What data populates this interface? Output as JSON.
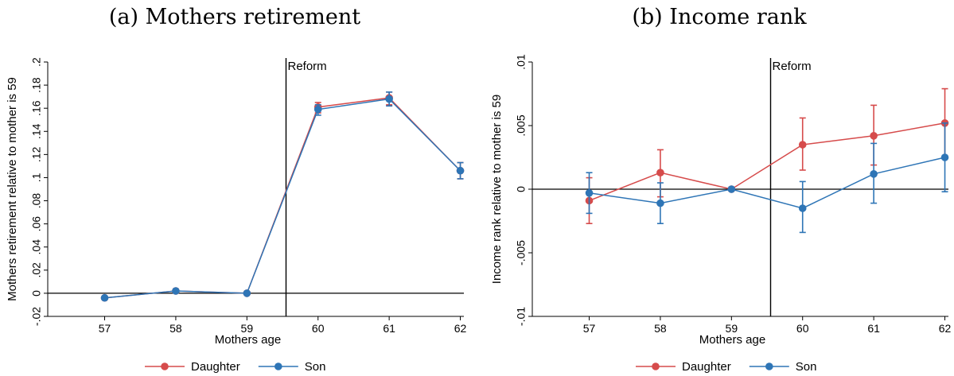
{
  "colors": {
    "daughter": "#d64b4b",
    "son": "#2e75b6"
  },
  "chart_data": [
    {
      "type": "line",
      "title": "(a) Mothers retirement",
      "xlabel": "Mothers age",
      "ylabel": "Mothers retirement relative to mother is 59",
      "x": [
        57,
        58,
        59,
        60,
        61,
        62
      ],
      "xlim": [
        56.2,
        62.05
      ],
      "ylim": [
        -0.02,
        0.2
      ],
      "y_ticks": [
        -0.02,
        0,
        0.02,
        0.04,
        0.06,
        0.08,
        0.1,
        0.12,
        0.14,
        0.16,
        0.18,
        0.2
      ],
      "y_tick_labels": [
        "-.02",
        "0",
        ".02",
        ".04",
        ".06",
        ".08",
        ".1",
        ".12",
        ".14",
        ".16",
        ".18",
        ".2"
      ],
      "x_tick_labels": [
        "57",
        "58",
        "59",
        "60",
        "61",
        "62"
      ],
      "reference_line_y": 0,
      "reform_x": 59.55,
      "reform_label": "Reform",
      "grid": false,
      "legend_position": "bottom",
      "series": [
        {
          "name": "Daughter",
          "color": "#d64b4b",
          "values": [
            -0.004,
            0.002,
            0,
            0.161,
            0.169,
            0.106
          ],
          "ci_low": [
            -0.005,
            0.001,
            0,
            0.156,
            0.163,
            0.099
          ],
          "ci_high": [
            -0.003,
            0.003,
            0,
            0.165,
            0.174,
            0.113
          ]
        },
        {
          "name": "Son",
          "color": "#2e75b6",
          "values": [
            -0.004,
            0.002,
            0,
            0.159,
            0.168,
            0.106
          ],
          "ci_low": [
            -0.005,
            0.001,
            0,
            0.154,
            0.162,
            0.099
          ],
          "ci_high": [
            -0.003,
            0.003,
            0,
            0.163,
            0.174,
            0.113
          ]
        }
      ]
    },
    {
      "type": "line",
      "title": "(b) Income rank",
      "xlabel": "Mothers age",
      "ylabel": "Income rank relative to mother is 59",
      "x": [
        57,
        58,
        59,
        60,
        61,
        62
      ],
      "xlim": [
        56.2,
        62.05
      ],
      "ylim": [
        -0.01,
        0.01
      ],
      "y_ticks": [
        -0.01,
        -0.005,
        0,
        0.005,
        0.01
      ],
      "y_tick_labels": [
        "-.01",
        "-.005",
        "0",
        ".005",
        ".01"
      ],
      "x_tick_labels": [
        "57",
        "58",
        "59",
        "60",
        "61",
        "62"
      ],
      "reference_line_y": 0,
      "reform_x": 59.55,
      "reform_label": "Reform",
      "grid": false,
      "legend_position": "bottom",
      "series": [
        {
          "name": "Daughter",
          "color": "#d64b4b",
          "values": [
            -0.0009,
            0.0013,
            0,
            0.0035,
            0.0042,
            0.0052
          ],
          "ci_low": [
            -0.0027,
            -0.0006,
            0,
            0.0015,
            0.0019,
            0.0025
          ],
          "ci_high": [
            0.0009,
            0.0031,
            0,
            0.0056,
            0.0066,
            0.0079
          ]
        },
        {
          "name": "Son",
          "color": "#2e75b6",
          "values": [
            -0.0003,
            -0.0011,
            0,
            -0.0015,
            0.0012,
            0.0025
          ],
          "ci_low": [
            -0.0019,
            -0.0027,
            0,
            -0.0034,
            -0.0011,
            -0.0002
          ],
          "ci_high": [
            0.0013,
            0.0005,
            0,
            0.0006,
            0.0036,
            0.0052
          ]
        }
      ]
    }
  ]
}
